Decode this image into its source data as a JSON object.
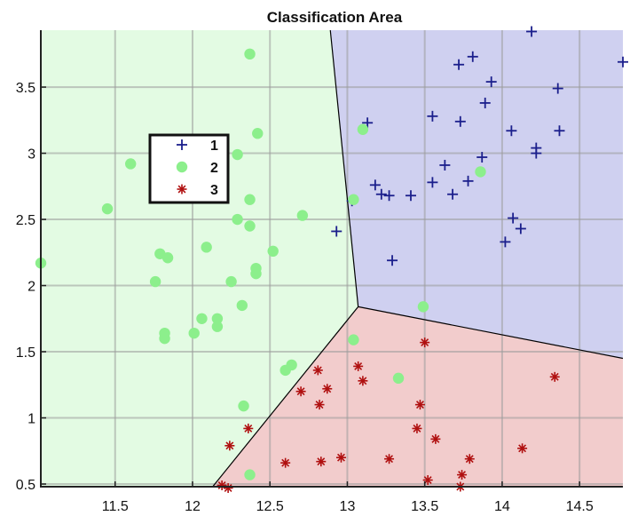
{
  "chart_data": {
    "type": "scatter",
    "title": "Classification Area",
    "xlabel": "",
    "ylabel": "",
    "xlim": [
      11.02,
      14.78
    ],
    "ylim": [
      0.48,
      3.93
    ],
    "x_ticks": [
      11.5,
      12,
      12.5,
      13,
      13.5,
      14,
      14.5
    ],
    "x_tick_labels": [
      "11.5",
      "12",
      "12.5",
      "13",
      "13.5",
      "14",
      "14.5"
    ],
    "y_ticks": [
      0.5,
      1,
      1.5,
      2,
      2.5,
      3,
      3.5
    ],
    "y_tick_labels": [
      "0.5",
      "1",
      "1.5",
      "2",
      "2.5",
      "3",
      "3.5"
    ],
    "grid": true,
    "legend_position": "upper-left",
    "regions": [
      {
        "class": "1",
        "color": "#cfd0f0",
        "vertices": [
          [
            12.89,
            3.93
          ],
          [
            14.78,
            3.93
          ],
          [
            14.78,
            1.45
          ],
          [
            13.07,
            1.84
          ]
        ]
      },
      {
        "class": "2",
        "color": "#e3fbe3",
        "vertices": [
          [
            11.02,
            3.93
          ],
          [
            12.89,
            3.93
          ],
          [
            13.07,
            1.84
          ],
          [
            12.13,
            0.48
          ],
          [
            11.02,
            0.48
          ]
        ]
      },
      {
        "class": "3",
        "color": "#f2cccc",
        "vertices": [
          [
            13.07,
            1.84
          ],
          [
            14.78,
            1.45
          ],
          [
            14.78,
            0.48
          ],
          [
            12.13,
            0.48
          ]
        ]
      }
    ],
    "boundaries": [
      [
        [
          12.89,
          3.93
        ],
        [
          13.07,
          1.84
        ]
      ],
      [
        [
          13.07,
          1.84
        ],
        [
          14.78,
          1.45
        ]
      ],
      [
        [
          13.07,
          1.84
        ],
        [
          12.13,
          0.48
        ]
      ]
    ],
    "series": [
      {
        "name": "1",
        "marker": "plus",
        "color": "#1b1f8c",
        "points": [
          [
            14.19,
            3.92
          ],
          [
            13.81,
            3.73
          ],
          [
            13.72,
            3.67
          ],
          [
            14.78,
            3.69
          ],
          [
            13.93,
            3.54
          ],
          [
            14.36,
            3.49
          ],
          [
            13.89,
            3.38
          ],
          [
            13.55,
            3.28
          ],
          [
            13.13,
            3.23
          ],
          [
            13.73,
            3.24
          ],
          [
            14.06,
            3.17
          ],
          [
            14.37,
            3.17
          ],
          [
            14.22,
            3.04
          ],
          [
            14.22,
            3.0
          ],
          [
            13.87,
            2.97
          ],
          [
            13.63,
            2.91
          ],
          [
            13.78,
            2.79
          ],
          [
            13.55,
            2.78
          ],
          [
            13.18,
            2.76
          ],
          [
            13.22,
            2.69
          ],
          [
            13.27,
            2.68
          ],
          [
            13.41,
            2.68
          ],
          [
            13.68,
            2.69
          ],
          [
            13.03,
            2.64
          ],
          [
            14.07,
            2.51
          ],
          [
            14.12,
            2.43
          ],
          [
            12.93,
            2.41
          ],
          [
            14.02,
            2.33
          ],
          [
            13.29,
            2.19
          ]
        ]
      },
      {
        "name": "2",
        "marker": "circle",
        "color": "#8cef8c",
        "points": [
          [
            12.37,
            3.75
          ],
          [
            12.42,
            3.15
          ],
          [
            13.1,
            3.18
          ],
          [
            11.6,
            2.92
          ],
          [
            12.29,
            2.99
          ],
          [
            13.86,
            2.86
          ],
          [
            11.45,
            2.58
          ],
          [
            12.37,
            2.65
          ],
          [
            13.04,
            2.65
          ],
          [
            12.71,
            2.53
          ],
          [
            12.29,
            2.5
          ],
          [
            12.37,
            2.45
          ],
          [
            12.09,
            2.29
          ],
          [
            12.52,
            2.26
          ],
          [
            11.79,
            2.24
          ],
          [
            11.84,
            2.21
          ],
          [
            11.02,
            2.17
          ],
          [
            12.41,
            2.13
          ],
          [
            12.41,
            2.09
          ],
          [
            11.76,
            2.03
          ],
          [
            12.25,
            2.03
          ],
          [
            12.32,
            1.85
          ],
          [
            13.49,
            1.84
          ],
          [
            12.06,
            1.75
          ],
          [
            12.16,
            1.75
          ],
          [
            12.16,
            1.69
          ],
          [
            12.01,
            1.64
          ],
          [
            11.82,
            1.64
          ],
          [
            11.82,
            1.6
          ],
          [
            13.04,
            1.59
          ],
          [
            12.64,
            1.4
          ],
          [
            12.6,
            1.36
          ],
          [
            13.33,
            1.3
          ],
          [
            12.33,
            1.09
          ],
          [
            12.37,
            0.57
          ]
        ]
      },
      {
        "name": "3",
        "marker": "asterisk",
        "color": "#b01010",
        "points": [
          [
            13.5,
            1.57
          ],
          [
            13.07,
            1.39
          ],
          [
            12.81,
            1.36
          ],
          [
            13.1,
            1.28
          ],
          [
            14.34,
            1.31
          ],
          [
            12.7,
            1.2
          ],
          [
            12.87,
            1.22
          ],
          [
            12.82,
            1.1
          ],
          [
            13.47,
            1.1
          ],
          [
            12.36,
            0.92
          ],
          [
            13.45,
            0.92
          ],
          [
            13.57,
            0.84
          ],
          [
            12.24,
            0.79
          ],
          [
            14.13,
            0.77
          ],
          [
            12.96,
            0.7
          ],
          [
            13.79,
            0.69
          ],
          [
            13.27,
            0.69
          ],
          [
            12.83,
            0.67
          ],
          [
            12.6,
            0.66
          ],
          [
            13.74,
            0.57
          ],
          [
            13.52,
            0.53
          ],
          [
            12.19,
            0.49
          ],
          [
            12.23,
            0.47
          ],
          [
            13.73,
            0.48
          ]
        ]
      }
    ]
  }
}
